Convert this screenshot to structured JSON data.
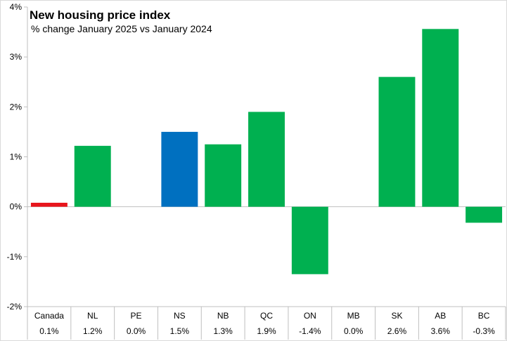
{
  "chart_data": {
    "type": "bar",
    "title": "New housing price index",
    "subtitle": "% change January 2025 vs January 2024",
    "categories": [
      "Canada",
      "NL",
      "PE",
      "NS",
      "NB",
      "QC",
      "ON",
      "MB",
      "SK",
      "AB",
      "BC"
    ],
    "value_labels": [
      "0.1%",
      "1.2%",
      "0.0%",
      "1.5%",
      "1.3%",
      "1.9%",
      "-1.4%",
      "0.0%",
      "2.6%",
      "3.6%",
      "-0.3%"
    ],
    "values": [
      0.08,
      1.22,
      0.0,
      1.5,
      1.25,
      1.9,
      -1.35,
      0.0,
      2.6,
      3.56,
      -0.32
    ],
    "bar_colors": [
      "#e8151c",
      "#00b050",
      "#00b050",
      "#0070c0",
      "#00b050",
      "#00b050",
      "#00b050",
      "#00b050",
      "#00b050",
      "#00b050",
      "#00b050"
    ],
    "ylim": [
      -2,
      4
    ],
    "yticks": [
      -2,
      -1,
      0,
      1,
      2,
      3,
      4
    ],
    "ytick_labels": [
      "-2%",
      "-1%",
      "0%",
      "1%",
      "2%",
      "3%",
      "4%"
    ],
    "grid": false,
    "legend": "none",
    "xlabel": "",
    "ylabel": ""
  }
}
